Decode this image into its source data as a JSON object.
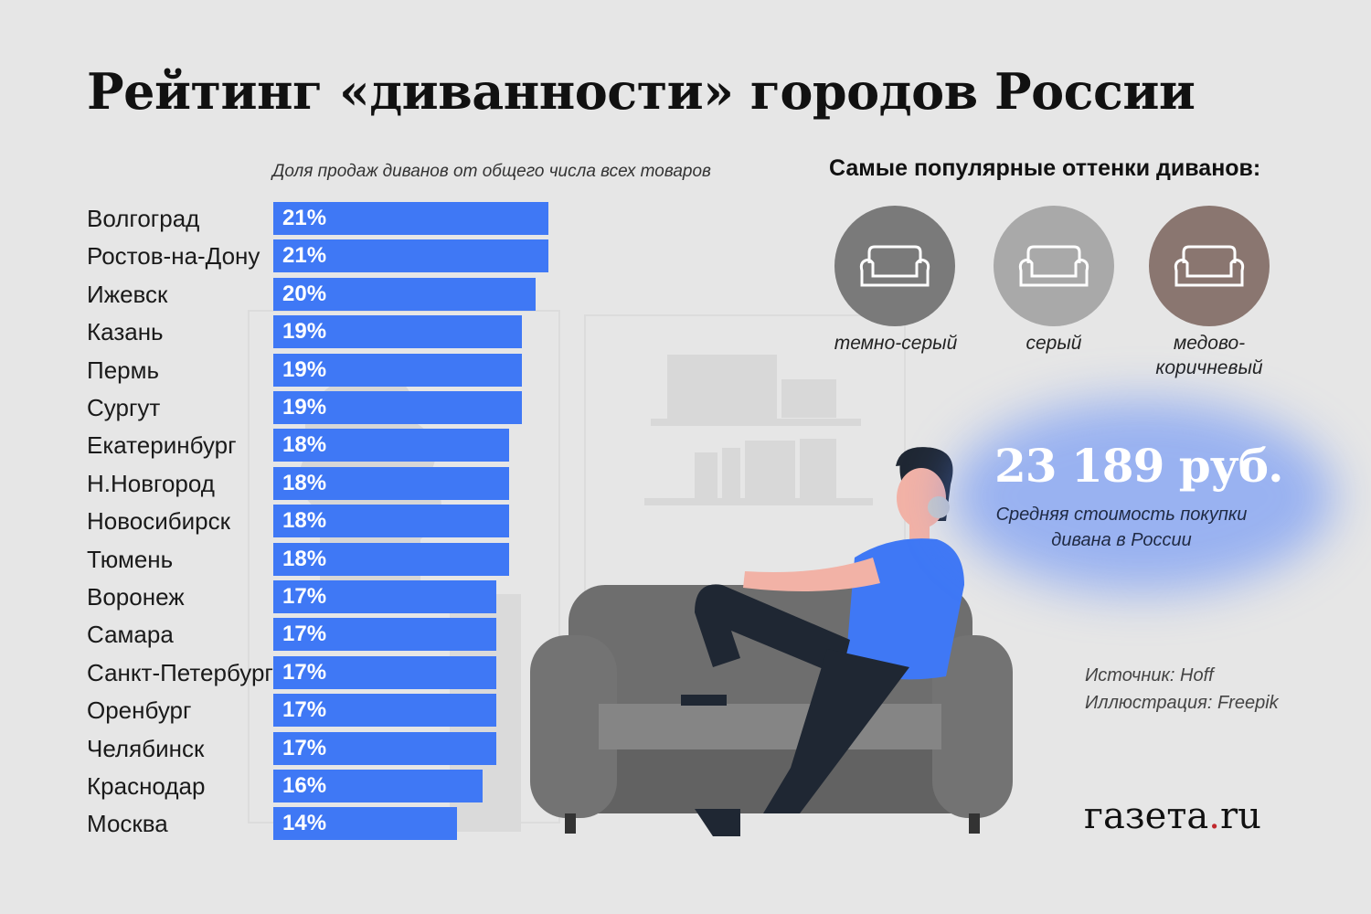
{
  "title": "Рейтинг «диванности» городов России",
  "chart_data": {
    "type": "bar",
    "orientation": "horizontal",
    "title": "Доля продаж диванов от общего числа всех товаров",
    "categories": [
      "Волгоград",
      "Ростов-на-Дону",
      "Ижевск",
      "Казань",
      "Пермь",
      "Сургут",
      "Екатеринбург",
      "Н.Новгород",
      "Новосибирск",
      "Тюмень",
      "Воронеж",
      "Самара",
      "Санкт-Петербург",
      "Оренбург",
      "Челябинск",
      "Краснодар",
      "Москва"
    ],
    "values": [
      21,
      21,
      20,
      19,
      19,
      19,
      18,
      18,
      18,
      18,
      17,
      17,
      17,
      17,
      17,
      16,
      14
    ],
    "value_labels": [
      "21%",
      "21%",
      "20%",
      "19%",
      "19%",
      "19%",
      "18%",
      "18%",
      "18%",
      "18%",
      "17%",
      "17%",
      "17%",
      "17%",
      "17%",
      "16%",
      "14%"
    ],
    "unit": "%",
    "xlim": [
      0,
      21
    ],
    "bar_color": "#3f78f5"
  },
  "shades": {
    "heading": "Самые популярные оттенки диванов:",
    "items": [
      {
        "label": "темно-серый",
        "color": "#7a7a7a",
        "icon": "sofa-icon"
      },
      {
        "label": "серый",
        "color": "#a9a9a9",
        "icon": "sofa-icon"
      },
      {
        "label": "медово-\nкоричневый",
        "color": "#8a7670",
        "icon": "sofa-icon"
      }
    ]
  },
  "price": {
    "value": "23 189 руб.",
    "caption": "Средняя стоимость покупки дивана в России"
  },
  "source": {
    "line1": "Источник: Hoff",
    "line2": "Иллюстрация: Freepik"
  },
  "logo": {
    "part1": "газета",
    "dot": ".",
    "part2": "ru"
  }
}
